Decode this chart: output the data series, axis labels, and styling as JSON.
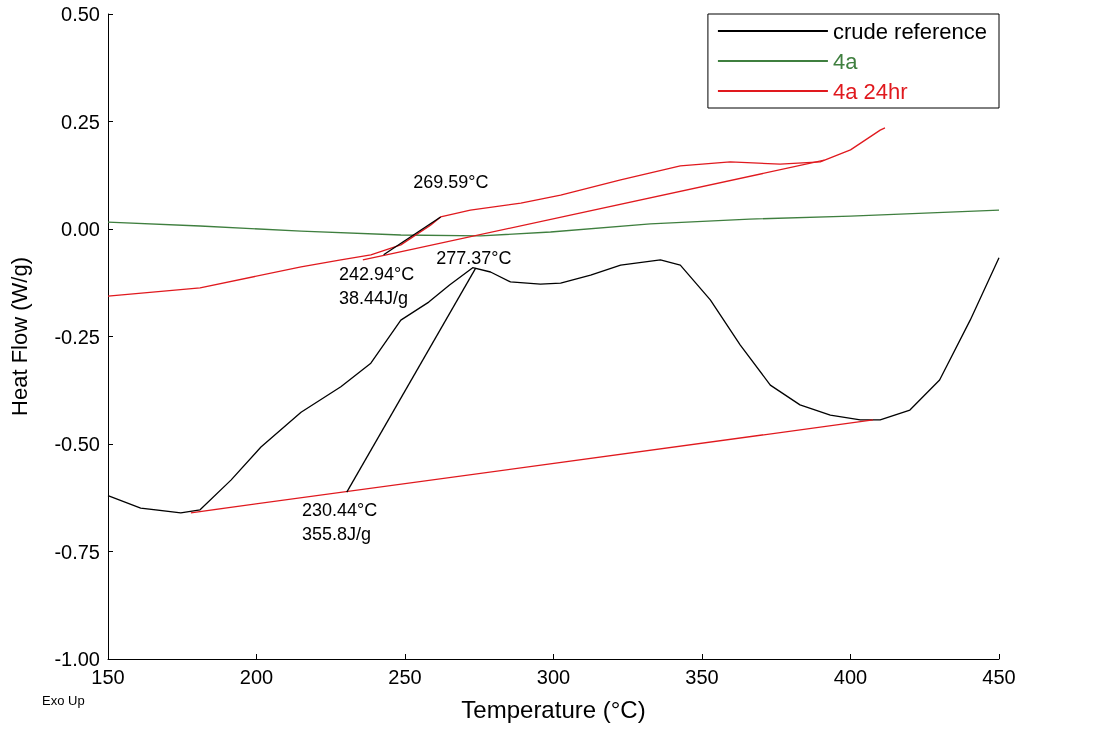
{
  "chart_data": {
    "type": "line",
    "xlabel": "Temperature (°C)",
    "ylabel": "Heat Flow (W/g)",
    "xlim": [
      150,
      450
    ],
    "xticks": [
      150,
      200,
      250,
      300,
      350,
      400,
      450
    ],
    "ylim": [
      -1,
      0.5
    ],
    "yticks": [
      {
        "value": -1,
        "label": "-1.00"
      },
      -0.75,
      {
        "value": -0.5,
        "label": "-0.50"
      },
      -0.25,
      {
        "value": 0,
        "label": "0.00"
      },
      0.25,
      {
        "value": 0.5,
        "label": "0.50"
      }
    ],
    "grid": false,
    "legend": "top right",
    "marker": "none",
    "line_style": "solid",
    "series": [
      {
        "name": "crude reference",
        "color": "#000000",
        "x": [
          150,
          161,
          174.5,
          181,
          191.4,
          201.5,
          215,
          228.4,
          238.5,
          248.6,
          258,
          265,
          272.8,
          278.8,
          285.5,
          295.6,
          302.4,
          312.5,
          322.6,
          336,
          342.7,
          352.8,
          362.9,
          373,
          383,
          393.2,
          403.3,
          410,
          420,
          430,
          440.3,
          450
        ],
        "values": [
          -0.62,
          -0.649,
          -0.66,
          -0.653,
          -0.584,
          -0.507,
          -0.426,
          -0.367,
          -0.312,
          -0.212,
          -0.17,
          -0.13,
          -0.09,
          -0.1,
          -0.123,
          -0.128,
          -0.126,
          -0.107,
          -0.084,
          -0.072,
          -0.084,
          -0.165,
          -0.27,
          -0.363,
          -0.409,
          -0.433,
          -0.444,
          -0.444,
          -0.421,
          -0.351,
          -0.212,
          -0.067
        ]
      },
      {
        "name": "4a",
        "color": "#3f7f3f",
        "x": [
          150,
          181,
          215,
          248.6,
          275.5,
          299,
          332.6,
          366,
          400,
          450
        ],
        "values": [
          0.016,
          0.007,
          -0.005,
          -0.014,
          -0.016,
          -0.007,
          0.012,
          0.023,
          0.03,
          0.044
        ]
      },
      {
        "name": "4a 24hr",
        "color": "#e0191e",
        "x": [
          150,
          181,
          215,
          228.4,
          238.5,
          248.6,
          258.6,
          262,
          272,
          289,
          302.4,
          322.6,
          342.7,
          359.5,
          376.3,
          389.8,
          400,
          410,
          411.6
        ],
        "values": [
          -0.156,
          -0.137,
          -0.088,
          -0.072,
          -0.06,
          -0.037,
          0.009,
          0.028,
          0.044,
          0.06,
          0.079,
          0.114,
          0.147,
          0.156,
          0.151,
          0.156,
          0.184,
          0.23,
          0.235
        ]
      },
      {
        "color": "#e0191e",
        "x": [
          235.8,
          391.2
        ],
        "values": [
          -0.072,
          0.16
        ]
      },
      {
        "color": "#000000",
        "x": [
          242.8,
          262
        ],
        "values": [
          -0.06,
          0.028
        ]
      },
      {
        "color": "#e0191e",
        "x": [
          177.9,
          407.6
        ],
        "values": [
          -0.66,
          -0.444
        ]
      },
      {
        "color": "#000000",
        "x": [
          230.4,
          273.8
        ],
        "values": [
          -0.612,
          -0.091
        ]
      }
    ],
    "annotations": [
      {
        "text": "269.59°C",
        "x": 269.59,
        "y": 0.05
      },
      {
        "text": "277.37°C",
        "x": 277.37,
        "y": -0.098
      },
      {
        "text": "242.94°C",
        "x": 242.94,
        "y": -0.06
      },
      {
        "text": "38.44J/g",
        "x": 242.94,
        "y": -0.06
      },
      {
        "text": "230.44°C",
        "x": 230.44,
        "y": -0.61
      },
      {
        "text": "355.8J/g",
        "x": 230.44,
        "y": -0.61
      },
      "Exo Up"
    ]
  }
}
